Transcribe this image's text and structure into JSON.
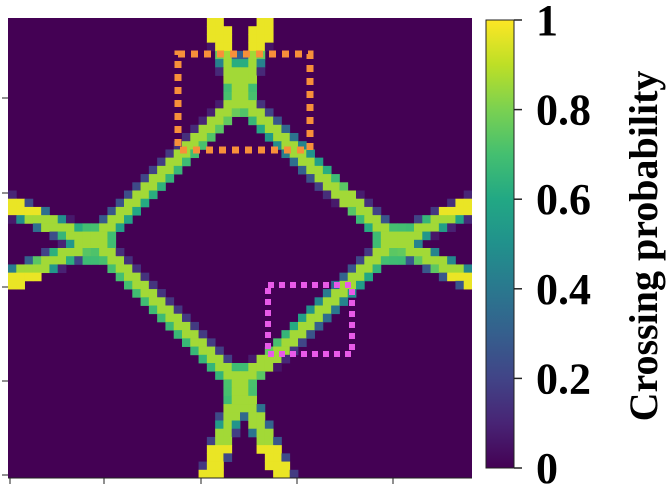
{
  "chart_data": {
    "type": "heatmap",
    "title": "",
    "xlabel": "",
    "ylabel": "",
    "colormap": "viridis",
    "value_range": [
      0,
      1
    ],
    "colorbar": {
      "label": "Crossing probability",
      "ticks": [
        0,
        0.2,
        0.4,
        0.6,
        0.8,
        1
      ],
      "tick_labels": [
        "0",
        "0.2",
        "0.4",
        "0.6",
        "0.8",
        "1"
      ],
      "placement": "right"
    },
    "grid": false,
    "background_value": 0,
    "pattern": "diamond-shaped band of high crossing probability (values near 0.8-1) with X-shaped avoided crossings at the top, bottom, left and right vertices; background near 0",
    "highlight_boxes": [
      {
        "name": "top avoided crossing",
        "color": "#f7903a",
        "style": "dotted"
      },
      {
        "name": "lower-right edge",
        "color": "#e85ae8",
        "style": "dotted"
      }
    ]
  }
}
